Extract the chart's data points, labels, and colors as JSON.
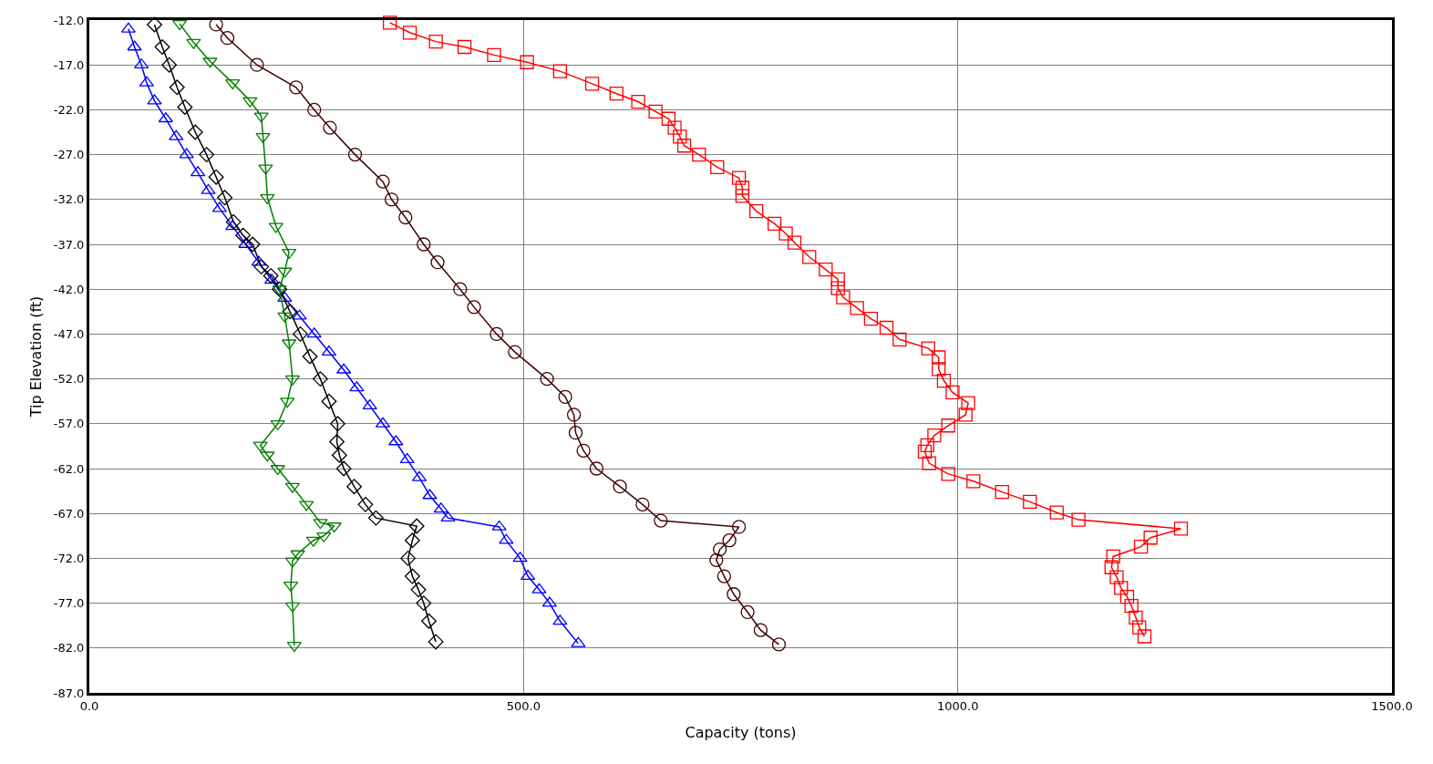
{
  "chart_data": {
    "type": "line",
    "xlabel": "Capacity (tons)",
    "ylabel": "Tip Elevation (ft)",
    "xlim": [
      0,
      1500
    ],
    "ylim": [
      -87,
      -12
    ],
    "xticks": [
      {
        "value": 0,
        "label": "0.0"
      },
      {
        "value": 500,
        "label": "500.0"
      },
      {
        "value": 1000,
        "label": "1000.0"
      },
      {
        "value": 1500,
        "label": "1500.0"
      }
    ],
    "yticks": [
      {
        "value": -12,
        "label": "-12.0"
      },
      {
        "value": -17,
        "label": "-17.0"
      },
      {
        "value": -22,
        "label": "-22.0"
      },
      {
        "value": -27,
        "label": "-27.0"
      },
      {
        "value": -32,
        "label": "-32.0"
      },
      {
        "value": -37,
        "label": "-37.0"
      },
      {
        "value": -42,
        "label": "-42.0"
      },
      {
        "value": -47,
        "label": "-47.0"
      },
      {
        "value": -52,
        "label": "-52.0"
      },
      {
        "value": -57,
        "label": "-57.0"
      },
      {
        "value": -62,
        "label": "-62.0"
      },
      {
        "value": -67,
        "label": "-67.0"
      },
      {
        "value": -72,
        "label": "-72.0"
      },
      {
        "value": -77,
        "label": "-77.0"
      },
      {
        "value": -82,
        "label": "-82.0"
      },
      {
        "value": -87,
        "label": "-87.0"
      }
    ],
    "grid": true,
    "line_style": "solid",
    "series": [
      {
        "color": "#0000ff",
        "marker": "triangle",
        "x": [
          45,
          52,
          60,
          66,
          75,
          88,
          100,
          112,
          125,
          137,
          150,
          165,
          180,
          195,
          210,
          225,
          242,
          259,
          276,
          293,
          308,
          323,
          338,
          353,
          366,
          380,
          392,
          405,
          413,
          472,
          480,
          496,
          505,
          518,
          530,
          542,
          563
        ],
        "values": [
          -13,
          -15,
          -17,
          -19,
          -21,
          -23,
          -25,
          -27,
          -29,
          -31,
          -33,
          -35,
          -37,
          -39,
          -41,
          -43,
          -45,
          -47,
          -49,
          -51,
          -53,
          -55,
          -57,
          -59,
          -61,
          -63,
          -65,
          -66.5,
          -67.5,
          -68.5,
          -70,
          -72,
          -74,
          -75.5,
          -77,
          -79,
          -81.5
        ]
      },
      {
        "color": "#000000",
        "marker": "diamond",
        "x": [
          75,
          84,
          92,
          101,
          110,
          122,
          135,
          146,
          156,
          166,
          177,
          188,
          198,
          209,
          219,
          231,
          243,
          254,
          266,
          276,
          286,
          285,
          288,
          293,
          305,
          318,
          330,
          377,
          372,
          367,
          372,
          379,
          385,
          391,
          399
        ],
        "values": [
          -12.5,
          -15,
          -17,
          -19.5,
          -21.7,
          -24.5,
          -27,
          -29.5,
          -31.8,
          -34.5,
          -36,
          -37,
          -39.5,
          -40.5,
          -42,
          -44.5,
          -47,
          -49.5,
          -52,
          -54.5,
          -57,
          -59,
          -60.5,
          -62,
          -64,
          -66,
          -67.5,
          -68.4,
          -70,
          -72,
          -74,
          -75.5,
          -77,
          -79,
          -81.3
        ]
      },
      {
        "color": "#008000",
        "marker": "triangle-down",
        "x": [
          104,
          120,
          139,
          165,
          185,
          198,
          200,
          203,
          205,
          215,
          230,
          225,
          219,
          225,
          230,
          234,
          228,
          217,
          197,
          205,
          217,
          234,
          250,
          266,
          282,
          270,
          258,
          240,
          234,
          232,
          234,
          236
        ],
        "values": [
          -12.4,
          -14.5,
          -16.6,
          -19,
          -21,
          -22.7,
          -25,
          -28.5,
          -31.8,
          -35,
          -37.9,
          -40,
          -42,
          -45,
          -48,
          -52,
          -54.5,
          -57,
          -59.4,
          -60.5,
          -62,
          -64,
          -66,
          -68,
          -68.4,
          -69.5,
          -70,
          -71.5,
          -72.3,
          -75,
          -77.3,
          -81.7
        ]
      },
      {
        "color": "#400000",
        "marker": "circle",
        "x": [
          146,
          159,
          193,
          238,
          259,
          277,
          306,
          338,
          348,
          364,
          385,
          401,
          427,
          443,
          469,
          490,
          527,
          548,
          558,
          560,
          569,
          584,
          611,
          637,
          658,
          748,
          737,
          726,
          722,
          731,
          742,
          758,
          773,
          794
        ],
        "values": [
          -12.5,
          -14,
          -17,
          -19.5,
          -22,
          -24,
          -27,
          -30,
          -32,
          -34,
          -37,
          -39,
          -42,
          -44,
          -47,
          -49,
          -52,
          -54,
          -56,
          -58,
          -60,
          -62,
          -64,
          -66,
          -67.8,
          -68.5,
          -70,
          -71,
          -72.2,
          -74,
          -76,
          -78,
          -80,
          -81.6
        ]
      },
      {
        "color": "#ff0000",
        "marker": "square",
        "x": [
          346,
          369,
          399,
          432,
          466,
          504,
          542,
          579,
          607,
          632,
          652,
          667,
          674,
          680,
          685,
          702,
          723,
          748,
          752,
          752,
          768,
          789,
          802,
          812,
          829,
          848,
          862,
          862,
          868,
          884,
          900,
          918,
          933,
          966,
          978,
          978,
          984,
          994,
          1012,
          1009,
          989,
          973,
          965,
          962,
          967,
          989,
          1018,
          1051,
          1083,
          1114,
          1139,
          1257,
          1222,
          1211,
          1179,
          1177,
          1183,
          1188,
          1195,
          1200,
          1205,
          1209,
          1215
        ],
        "values": [
          -12.3,
          -13.4,
          -14.4,
          -15,
          -15.9,
          -16.7,
          -17.7,
          -19.1,
          -20.2,
          -21.1,
          -22.2,
          -23,
          -24,
          -25,
          -26,
          -27,
          -28.4,
          -29.6,
          -30.7,
          -31.6,
          -33.3,
          -34.7,
          -35.8,
          -36.8,
          -38.4,
          -39.8,
          -40.9,
          -41.9,
          -42.9,
          -44.1,
          -45.3,
          -46.3,
          -47.6,
          -48.6,
          -49.6,
          -50.9,
          -52.2,
          -53.5,
          -54.7,
          -56,
          -57.2,
          -58.3,
          -59.4,
          -60.1,
          -61.4,
          -62.6,
          -63.4,
          -64.6,
          -65.7,
          -66.9,
          -67.7,
          -68.7,
          -69.7,
          -70.7,
          -71.8,
          -73,
          -74.1,
          -75.3,
          -76.3,
          -77.3,
          -78.6,
          -79.7,
          -80.7
        ]
      }
    ]
  }
}
